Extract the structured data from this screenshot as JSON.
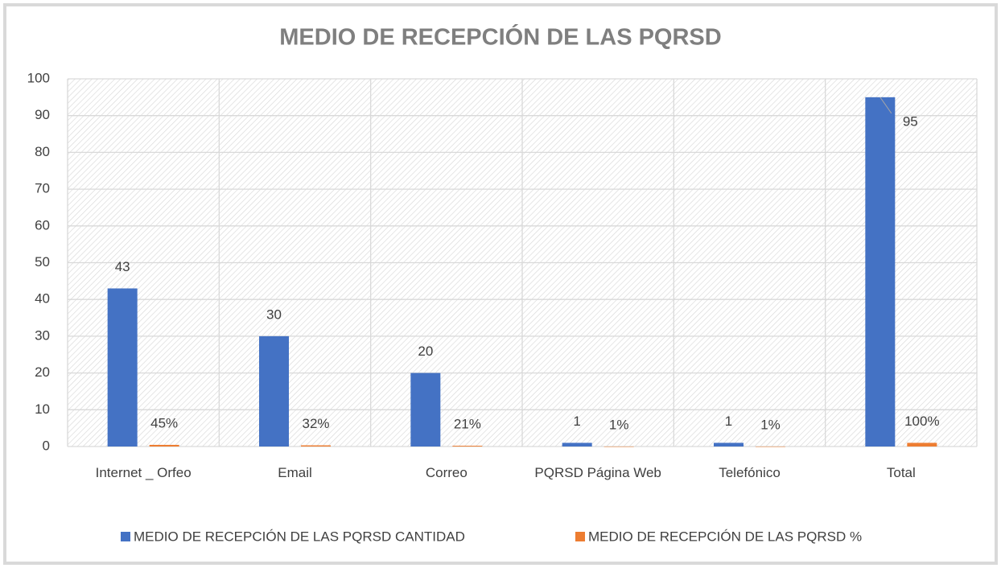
{
  "chart_data": {
    "type": "bar",
    "title": "MEDIO DE RECEPCIÓN DE LAS PQRSD",
    "categories": [
      "Internet _ Orfeo",
      "Email",
      "Correo",
      "PQRSD Página Web",
      "Telefónico",
      "Total"
    ],
    "series": [
      {
        "name": "MEDIO DE RECEPCIÓN DE LAS PQRSD CANTIDAD",
        "color": "#4472c4",
        "values": [
          43,
          30,
          20,
          1,
          1,
          95
        ]
      },
      {
        "name": "MEDIO DE RECEPCIÓN DE LAS PQRSD %",
        "color": "#ed7d31",
        "values": [
          0.45,
          0.32,
          0.21,
          0.01,
          0.01,
          1
        ],
        "value_labels": [
          "45%",
          "32%",
          "21%",
          "1%",
          "1%",
          "100%"
        ]
      }
    ],
    "ylim": [
      0,
      100
    ],
    "yticks": [
      0,
      10,
      20,
      30,
      40,
      50,
      60,
      70,
      80,
      90,
      100
    ],
    "grid": true,
    "legend": "bottom"
  }
}
